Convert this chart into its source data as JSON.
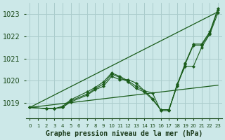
{
  "background_color": "#cce8e8",
  "grid_color": "#aacccc",
  "line_color": "#1a5c1a",
  "xlabel": "Graphe pression niveau de la mer (hPa)",
  "xlabel_fontsize": 7,
  "ylabel_ticks": [
    1019,
    1020,
    1021,
    1022,
    1023
  ],
  "xlim": [
    -0.5,
    23.5
  ],
  "ylim": [
    1018.3,
    1023.5
  ],
  "smooth_line1": {
    "x": [
      0,
      23
    ],
    "y": [
      1018.8,
      1023.1
    ]
  },
  "smooth_line2": {
    "x": [
      0,
      23
    ],
    "y": [
      1018.8,
      1019.8
    ]
  },
  "marked_series": [
    {
      "x": [
        0,
        2,
        3,
        4,
        5,
        7,
        8,
        9,
        10,
        11,
        12,
        13,
        14,
        15,
        16,
        17,
        18,
        19,
        20,
        21,
        22,
        23
      ],
      "y": [
        1018.8,
        1018.75,
        1018.75,
        1018.8,
        1019.05,
        1019.35,
        1019.6,
        1019.75,
        1020.2,
        1020.05,
        1020.05,
        1019.9,
        1019.55,
        1019.45,
        1018.65,
        1018.65,
        1019.85,
        1020.65,
        1020.65,
        1021.5,
        1022.1,
        1023.05
      ]
    },
    {
      "x": [
        0,
        2,
        3,
        4,
        5,
        7,
        8,
        9,
        10,
        11,
        12,
        13,
        14,
        15,
        16,
        17,
        18,
        19,
        20,
        21,
        22,
        23
      ],
      "y": [
        1018.8,
        1018.75,
        1018.75,
        1018.8,
        1019.1,
        1019.4,
        1019.65,
        1019.85,
        1020.3,
        1020.15,
        1019.95,
        1019.65,
        1019.5,
        1019.15,
        1018.7,
        1018.7,
        1019.75,
        1020.75,
        1021.6,
        1021.6,
        1022.15,
        1023.2
      ]
    },
    {
      "x": [
        0,
        2,
        3,
        4,
        5,
        7,
        8,
        9,
        10,
        11,
        12,
        13,
        14,
        15,
        16,
        17,
        18,
        19,
        20,
        21,
        22,
        23
      ],
      "y": [
        1018.8,
        1018.75,
        1018.75,
        1018.85,
        1019.15,
        1019.5,
        1019.7,
        1019.95,
        1020.35,
        1020.2,
        1020.0,
        1019.75,
        1019.55,
        1019.2,
        1018.7,
        1018.7,
        1019.8,
        1020.8,
        1021.65,
        1021.65,
        1022.2,
        1023.25
      ]
    }
  ]
}
